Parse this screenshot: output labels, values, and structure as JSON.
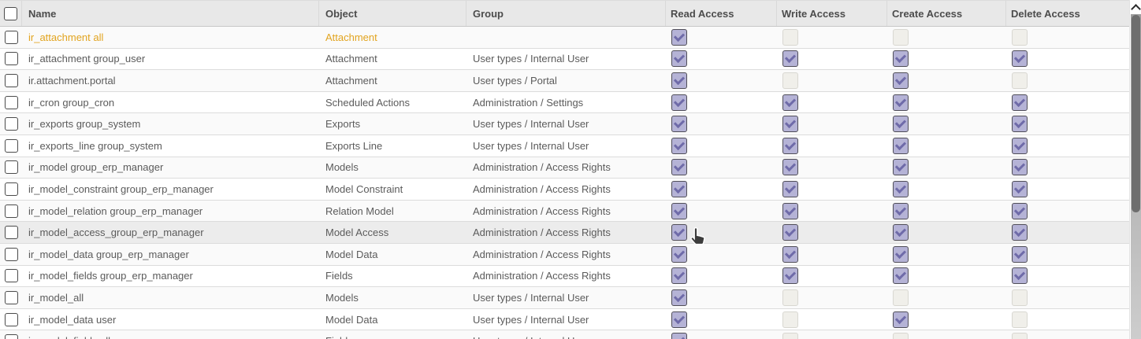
{
  "table": {
    "columns": [
      {
        "key": "name",
        "label": "Name"
      },
      {
        "key": "object",
        "label": "Object"
      },
      {
        "key": "group",
        "label": "Group"
      },
      {
        "key": "read",
        "label": "Read Access"
      },
      {
        "key": "write",
        "label": "Write Access"
      },
      {
        "key": "create",
        "label": "Create Access"
      },
      {
        "key": "delete",
        "label": "Delete Access"
      }
    ],
    "rows": [
      {
        "name": "ir_attachment all",
        "object": "Attachment",
        "group": "",
        "read": true,
        "write": false,
        "create": false,
        "delete": false,
        "warning": true,
        "hovered": false
      },
      {
        "name": "ir_attachment group_user",
        "object": "Attachment",
        "group": "User types / Internal User",
        "read": true,
        "write": true,
        "create": true,
        "delete": true,
        "warning": false,
        "hovered": false
      },
      {
        "name": "ir.attachment.portal",
        "object": "Attachment",
        "group": "User types / Portal",
        "read": true,
        "write": false,
        "create": true,
        "delete": false,
        "warning": false,
        "hovered": false
      },
      {
        "name": "ir_cron group_cron",
        "object": "Scheduled Actions",
        "group": "Administration / Settings",
        "read": true,
        "write": true,
        "create": true,
        "delete": true,
        "warning": false,
        "hovered": false
      },
      {
        "name": "ir_exports group_system",
        "object": "Exports",
        "group": "User types / Internal User",
        "read": true,
        "write": true,
        "create": true,
        "delete": true,
        "warning": false,
        "hovered": false
      },
      {
        "name": "ir_exports_line group_system",
        "object": "Exports Line",
        "group": "User types / Internal User",
        "read": true,
        "write": true,
        "create": true,
        "delete": true,
        "warning": false,
        "hovered": false
      },
      {
        "name": "ir_model group_erp_manager",
        "object": "Models",
        "group": "Administration / Access Rights",
        "read": true,
        "write": true,
        "create": true,
        "delete": true,
        "warning": false,
        "hovered": false
      },
      {
        "name": "ir_model_constraint group_erp_manager",
        "object": "Model Constraint",
        "group": "Administration / Access Rights",
        "read": true,
        "write": true,
        "create": true,
        "delete": true,
        "warning": false,
        "hovered": false
      },
      {
        "name": "ir_model_relation group_erp_manager",
        "object": "Relation Model",
        "group": "Administration / Access Rights",
        "read": true,
        "write": true,
        "create": true,
        "delete": true,
        "warning": false,
        "hovered": false
      },
      {
        "name": "ir_model_access_group_erp_manager",
        "object": "Model Access",
        "group": "Administration / Access Rights",
        "read": true,
        "write": true,
        "create": true,
        "delete": true,
        "warning": false,
        "hovered": true
      },
      {
        "name": "ir_model_data group_erp_manager",
        "object": "Model Data",
        "group": "Administration / Access Rights",
        "read": true,
        "write": true,
        "create": true,
        "delete": true,
        "warning": false,
        "hovered": false
      },
      {
        "name": "ir_model_fields group_erp_manager",
        "object": "Fields",
        "group": "Administration / Access Rights",
        "read": true,
        "write": true,
        "create": true,
        "delete": true,
        "warning": false,
        "hovered": false
      },
      {
        "name": "ir_model_all",
        "object": "Models",
        "group": "User types / Internal User",
        "read": true,
        "write": false,
        "create": false,
        "delete": false,
        "warning": false,
        "hovered": false
      },
      {
        "name": "ir_model_data user",
        "object": "Model Data",
        "group": "User types / Internal User",
        "read": true,
        "write": false,
        "create": true,
        "delete": false,
        "warning": false,
        "hovered": false
      },
      {
        "name": "ir_model_fields all",
        "object": "Fields",
        "group": "User types / Internal User",
        "read": true,
        "write": false,
        "create": false,
        "delete": false,
        "warning": false,
        "hovered": false
      }
    ]
  },
  "colors": {
    "warning_text": "#e2a41f",
    "checkbox_checked_bg": "#b5b3d6",
    "checkbox_checkmark": "#6f6ba9",
    "checkbox_unchecked_bg": "#f0efea",
    "header_bg": "#e8e8e8",
    "stripe_bg": "#fafafa",
    "row_hover_bg": "#ececec",
    "scrollbar_thumb": "#6e6e6e"
  }
}
